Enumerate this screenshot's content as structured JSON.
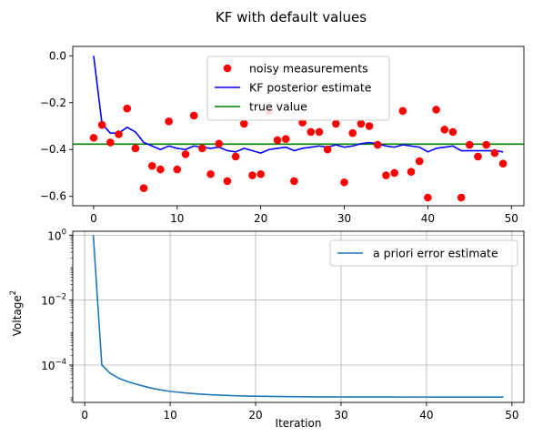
{
  "figure": {
    "suptitle": "KF with default values"
  },
  "chart_data": [
    {
      "type": "scatter+line",
      "title": "",
      "xlabel": "",
      "ylabel": "",
      "xlim": [
        -2.5,
        51.5
      ],
      "ylim": [
        -0.64,
        0.04
      ],
      "x_ticks": [
        0,
        10,
        20,
        30,
        40,
        50
      ],
      "x_tick_labels": [
        "0",
        "10",
        "20",
        "30",
        "40",
        "50"
      ],
      "y_ticks": [
        0.0,
        -0.2,
        -0.4,
        -0.6
      ],
      "y_tick_labels": [
        "0.0",
        "−0.2",
        "−0.4",
        "−0.6"
      ],
      "grid": false,
      "legend_placement": "top-center",
      "series": [
        {
          "name": "noisy measurements",
          "kind": "scatter",
          "color": "#ff0000",
          "x": [
            0,
            1,
            2,
            3,
            4,
            5,
            6,
            7,
            8,
            9,
            10,
            11,
            12,
            13,
            14,
            15,
            16,
            17,
            18,
            19,
            20,
            21,
            22,
            23,
            24,
            25,
            26,
            27,
            28,
            29,
            30,
            31,
            32,
            33,
            34,
            35,
            36,
            37,
            38,
            39,
            40,
            41,
            42,
            43,
            44,
            45,
            46,
            47,
            48,
            49
          ],
          "values": [
            -0.35,
            -0.295,
            -0.37,
            -0.335,
            -0.225,
            -0.395,
            -0.565,
            -0.47,
            -0.485,
            -0.28,
            -0.485,
            -0.42,
            -0.255,
            -0.395,
            -0.505,
            -0.375,
            -0.535,
            -0.43,
            -0.29,
            -0.51,
            -0.505,
            -0.235,
            -0.36,
            -0.355,
            -0.535,
            -0.285,
            -0.325,
            -0.325,
            -0.4,
            -0.29,
            -0.54,
            -0.33,
            -0.29,
            -0.3,
            -0.38,
            -0.51,
            -0.5,
            -0.235,
            -0.495,
            -0.45,
            -0.605,
            -0.23,
            -0.315,
            -0.325,
            -0.605,
            -0.38,
            -0.43,
            -0.38,
            -0.415,
            -0.46
          ]
        },
        {
          "name": "KF posterior estimate",
          "kind": "line",
          "color": "#0000ff",
          "x": [
            0,
            1,
            2,
            3,
            4,
            5,
            6,
            7,
            8,
            9,
            10,
            11,
            12,
            13,
            14,
            15,
            16,
            17,
            18,
            19,
            20,
            21,
            22,
            23,
            24,
            25,
            26,
            27,
            28,
            29,
            30,
            31,
            32,
            33,
            34,
            35,
            36,
            37,
            38,
            39,
            40,
            41,
            42,
            43,
            44,
            45,
            46,
            47,
            48,
            49
          ],
          "values": [
            0.0,
            -0.29,
            -0.33,
            -0.33,
            -0.305,
            -0.325,
            -0.37,
            -0.385,
            -0.4,
            -0.385,
            -0.395,
            -0.4,
            -0.385,
            -0.39,
            -0.395,
            -0.39,
            -0.405,
            -0.41,
            -0.395,
            -0.405,
            -0.415,
            -0.4,
            -0.395,
            -0.39,
            -0.405,
            -0.395,
            -0.39,
            -0.385,
            -0.39,
            -0.38,
            -0.39,
            -0.385,
            -0.375,
            -0.37,
            -0.375,
            -0.385,
            -0.39,
            -0.38,
            -0.385,
            -0.39,
            -0.41,
            -0.395,
            -0.39,
            -0.385,
            -0.405,
            -0.405,
            -0.405,
            -0.405,
            -0.405,
            -0.41
          ]
        },
        {
          "name": "true value",
          "kind": "hline",
          "color": "#008000",
          "values": [
            -0.377
          ]
        }
      ]
    },
    {
      "type": "line",
      "title": "",
      "xlabel": "Iteration",
      "ylabel": "Voltage",
      "ylabel_superscript": "2",
      "yscale": "log",
      "xlim": [
        -1.4,
        51.4
      ],
      "ylim_log10": [
        -5.15,
        0.12
      ],
      "x_ticks": [
        0,
        10,
        20,
        30,
        40,
        50
      ],
      "x_tick_labels": [
        "0",
        "10",
        "20",
        "30",
        "40",
        "50"
      ],
      "y_ticks_log10": [
        0,
        -2,
        -4
      ],
      "y_tick_labels": [
        {
          "base": "10",
          "exp": "0"
        },
        {
          "base": "10",
          "exp": "−2"
        },
        {
          "base": "10",
          "exp": "−4"
        }
      ],
      "grid": true,
      "legend_placement": "top-right",
      "series": [
        {
          "name": "a priori error estimate",
          "color": "#1f77b4",
          "x": [
            1,
            2,
            3,
            4,
            5,
            6,
            7,
            8,
            9,
            10,
            11,
            12,
            13,
            14,
            15,
            16,
            17,
            18,
            19,
            20,
            21,
            22,
            23,
            24,
            25,
            26,
            27,
            28,
            29,
            30,
            31,
            32,
            33,
            34,
            35,
            36,
            37,
            38,
            39,
            40,
            41,
            42,
            43,
            44,
            45,
            46,
            47,
            48,
            49
          ],
          "values": [
            1.0,
            0.000101,
            5.5e-05,
            3.9e-05,
            3.1e-05,
            2.6e-05,
            2.2e-05,
            1.9e-05,
            1.7e-05,
            1.55e-05,
            1.45e-05,
            1.37e-05,
            1.3e-05,
            1.25e-05,
            1.21e-05,
            1.18e-05,
            1.15e-05,
            1.13e-05,
            1.11e-05,
            1.1e-05,
            1.09e-05,
            1.08e-05,
            1.07e-05,
            1.065e-05,
            1.06e-05,
            1.055e-05,
            1.05e-05,
            1.048e-05,
            1.045e-05,
            1.043e-05,
            1.041e-05,
            1.04e-05,
            1.039e-05,
            1.038e-05,
            1.037e-05,
            1.036e-05,
            1.035e-05,
            1.035e-05,
            1.034e-05,
            1.034e-05,
            1.033e-05,
            1.033e-05,
            1.033e-05,
            1.032e-05,
            1.032e-05,
            1.032e-05,
            1.032e-05,
            1.031e-05,
            1.031e-05
          ]
        }
      ]
    }
  ]
}
